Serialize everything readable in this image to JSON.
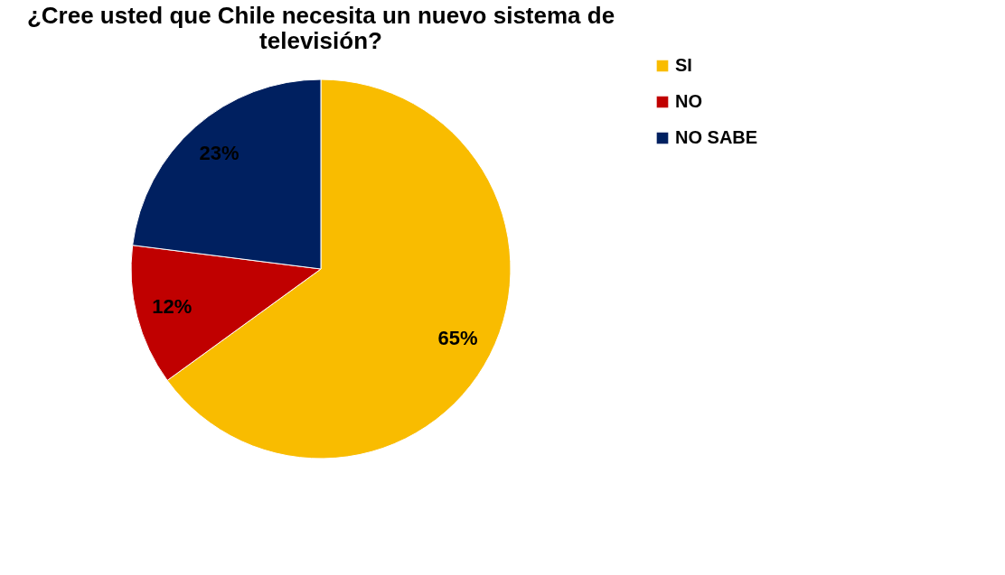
{
  "chart_data": {
    "type": "pie",
    "title": "¿Cree usted que Chile necesita un nuevo sistema de televisión?",
    "categories": [
      "SI",
      "NO",
      "NO SABE"
    ],
    "values": [
      65,
      12,
      23
    ],
    "colors": [
      "#f9bc00",
      "#c00000",
      "#002060"
    ],
    "value_labels": [
      "65%",
      "12%",
      "23%"
    ],
    "legend": "right"
  }
}
